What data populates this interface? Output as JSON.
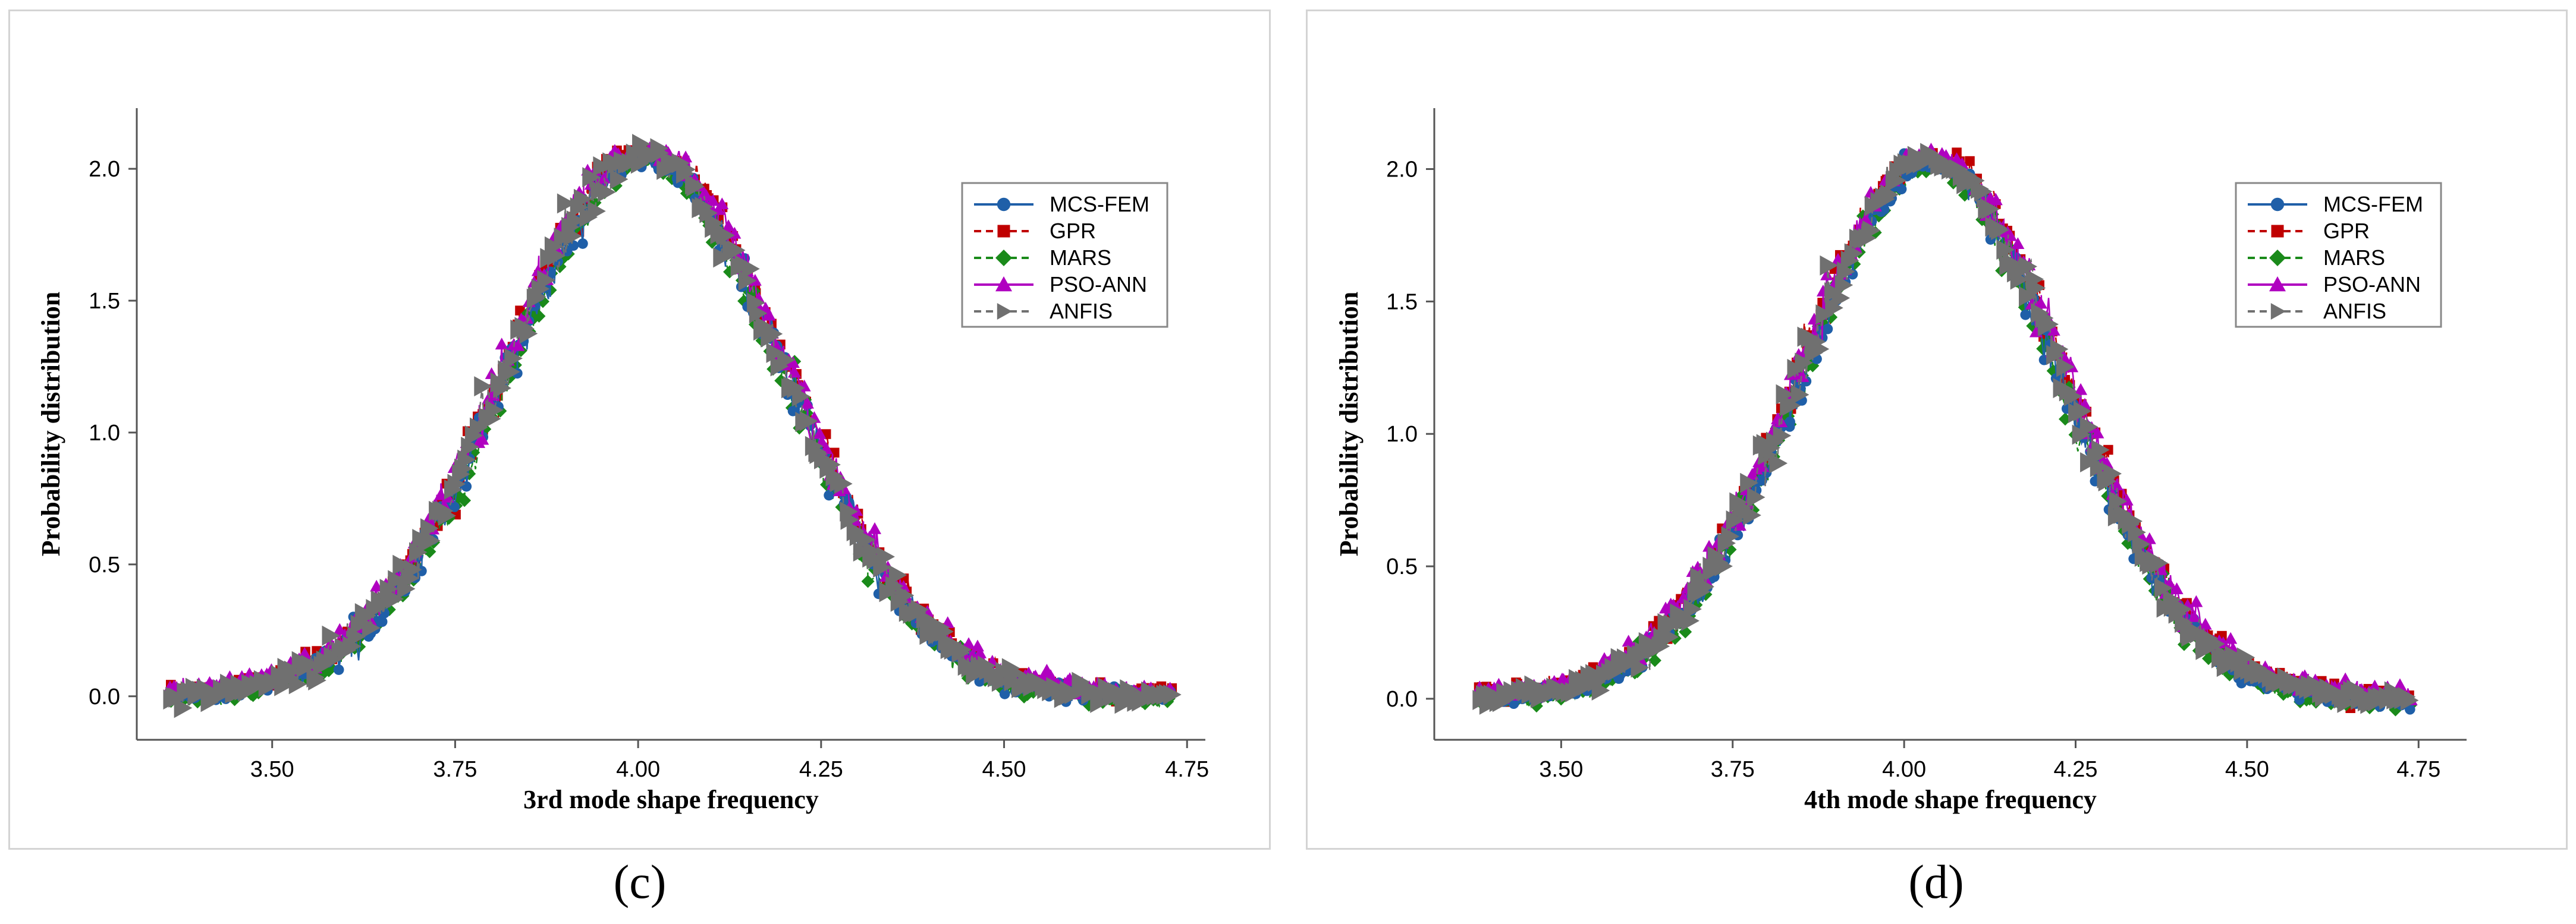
{
  "chart_data": [
    {
      "type": "line",
      "panel_label": "(c)",
      "title": "",
      "xlabel": "3rd mode shape frequency",
      "ylabel": "Probability distribution",
      "xlim": [
        3.315,
        4.775
      ],
      "ylim": [
        -0.165,
        2.23
      ],
      "x_ticks": [
        3.5,
        3.75,
        4.0,
        4.25,
        4.5,
        4.75
      ],
      "x_tick_labels": [
        "3.50",
        "3.75",
        "4.00",
        "4.25",
        "4.50",
        "4.75"
      ],
      "y_ticks": [
        0.0,
        0.5,
        1.0,
        1.5,
        2.0
      ],
      "y_tick_labels": [
        "0.0",
        "0.5",
        "1.0",
        "1.5",
        "2.0"
      ],
      "distribution": {
        "mean": 4.01,
        "std": 0.19,
        "peak": 2.05,
        "x_min": 3.36,
        "x_max": 4.73
      },
      "legend_position": "top-right",
      "series": [
        {
          "name": "MCS-FEM",
          "color": "#1f5fa8",
          "marker": "circle",
          "dash": "solid",
          "y_offset": -0.02
        },
        {
          "name": "GPR",
          "color": "#c00000",
          "marker": "square",
          "dash": "dashed",
          "y_offset": 0.03
        },
        {
          "name": "MARS",
          "color": "#1a8a1a",
          "marker": "diamond",
          "dash": "dashed",
          "y_offset": -0.04
        },
        {
          "name": "PSO-ANN",
          "color": "#b000c0",
          "marker": "triangle-up",
          "dash": "solid",
          "y_offset": 0.05
        },
        {
          "name": "ANFIS",
          "color": "#707070",
          "marker": "triangle-right",
          "dash": "dashed",
          "y_offset": 0.0
        }
      ]
    },
    {
      "type": "line",
      "panel_label": "(d)",
      "title": "",
      "xlabel": "4th mode shape frequency",
      "ylabel": "Probability distribution",
      "xlim": [
        3.315,
        4.82
      ],
      "ylim": [
        -0.155,
        2.23
      ],
      "x_ticks": [
        3.5,
        3.75,
        4.0,
        4.25,
        4.5,
        4.75
      ],
      "x_tick_labels": [
        "3.50",
        "3.75",
        "4.00",
        "4.25",
        "4.50",
        "4.75"
      ],
      "y_ticks": [
        0.0,
        0.5,
        1.0,
        1.5,
        2.0
      ],
      "y_tick_labels": [
        "0.0",
        "0.5",
        "1.0",
        "1.5",
        "2.0"
      ],
      "distribution": {
        "mean": 4.04,
        "std": 0.19,
        "peak": 2.03,
        "x_min": 3.38,
        "x_max": 4.74
      },
      "legend_position": "top-right",
      "series": [
        {
          "name": "MCS-FEM",
          "color": "#1f5fa8",
          "marker": "circle",
          "dash": "solid",
          "y_offset": -0.02
        },
        {
          "name": "GPR",
          "color": "#c00000",
          "marker": "square",
          "dash": "dashed",
          "y_offset": 0.03
        },
        {
          "name": "MARS",
          "color": "#1a8a1a",
          "marker": "diamond",
          "dash": "dashed",
          "y_offset": -0.04
        },
        {
          "name": "PSO-ANN",
          "color": "#b000c0",
          "marker": "triangle-up",
          "dash": "solid",
          "y_offset": 0.05
        },
        {
          "name": "ANFIS",
          "color": "#707070",
          "marker": "triangle-right",
          "dash": "dashed",
          "y_offset": 0.0
        }
      ]
    }
  ]
}
